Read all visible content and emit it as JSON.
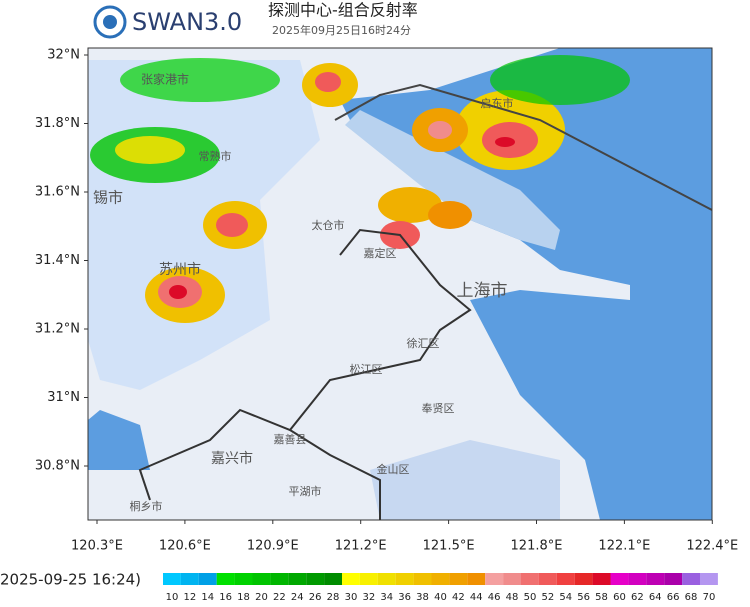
{
  "header": {
    "logo": "SWAN3.0",
    "title": "探测中心-组合反射率",
    "time": "2025年09月25日16时24分"
  },
  "map": {
    "lat_ticks": [
      "32°N",
      "31.8°N",
      "31.6°N",
      "31.4°N",
      "31.2°N",
      "31°N",
      "30.8°N"
    ],
    "lon_ticks": [
      "120.3°E",
      "120.6°E",
      "120.9°E",
      "121.2°E",
      "121.5°E",
      "121.8°E",
      "122.1°E",
      "122.4°E"
    ],
    "places": [
      {
        "label": "张家港市"
      },
      {
        "label": "常熟市"
      },
      {
        "label": "锡市"
      },
      {
        "label": "太仓市"
      },
      {
        "label": "苏州市"
      },
      {
        "label": "嘉定区"
      },
      {
        "label": "上海市"
      },
      {
        "label": "启东市"
      },
      {
        "label": "徐汇区"
      },
      {
        "label": "松江区"
      },
      {
        "label": "奉贤区"
      },
      {
        "label": "嘉善县"
      },
      {
        "label": "嘉兴市"
      },
      {
        "label": "金山区"
      },
      {
        "label": "平湖市"
      },
      {
        "label": "桐乡市"
      }
    ]
  },
  "legend": {
    "time": "2025-09-25 16:24)",
    "levels": [
      {
        "value": 10,
        "color": "#00c8ff"
      },
      {
        "value": 12,
        "color": "#00b4f0"
      },
      {
        "value": 14,
        "color": "#00a0e6"
      },
      {
        "value": 16,
        "color": "#00e000"
      },
      {
        "value": 18,
        "color": "#00d200"
      },
      {
        "value": 20,
        "color": "#00c400"
      },
      {
        "value": 22,
        "color": "#00b600"
      },
      {
        "value": 24,
        "color": "#00a800"
      },
      {
        "value": 26,
        "color": "#009a00"
      },
      {
        "value": 28,
        "color": "#008c00"
      },
      {
        "value": 30,
        "color": "#ffff00"
      },
      {
        "value": 32,
        "color": "#f8f000"
      },
      {
        "value": 34,
        "color": "#f0e000"
      },
      {
        "value": 36,
        "color": "#f0d000"
      },
      {
        "value": 38,
        "color": "#f0c000"
      },
      {
        "value": 40,
        "color": "#f0b000"
      },
      {
        "value": 42,
        "color": "#f0a000"
      },
      {
        "value": 44,
        "color": "#f09000"
      },
      {
        "value": 46,
        "color": "#f4a0a0"
      },
      {
        "value": 48,
        "color": "#f08c8c"
      },
      {
        "value": 50,
        "color": "#f07070"
      },
      {
        "value": 52,
        "color": "#f05a5a"
      },
      {
        "value": 54,
        "color": "#f04040"
      },
      {
        "value": 56,
        "color": "#e62828"
      },
      {
        "value": 58,
        "color": "#dc0a28"
      },
      {
        "value": 60,
        "color": "#e600c8"
      },
      {
        "value": 62,
        "color": "#d200c0"
      },
      {
        "value": 64,
        "color": "#be00b4"
      },
      {
        "value": 66,
        "color": "#aa00aa"
      },
      {
        "value": 68,
        "color": "#9a60e0"
      },
      {
        "value": 70,
        "color": "#b496f0"
      }
    ]
  }
}
